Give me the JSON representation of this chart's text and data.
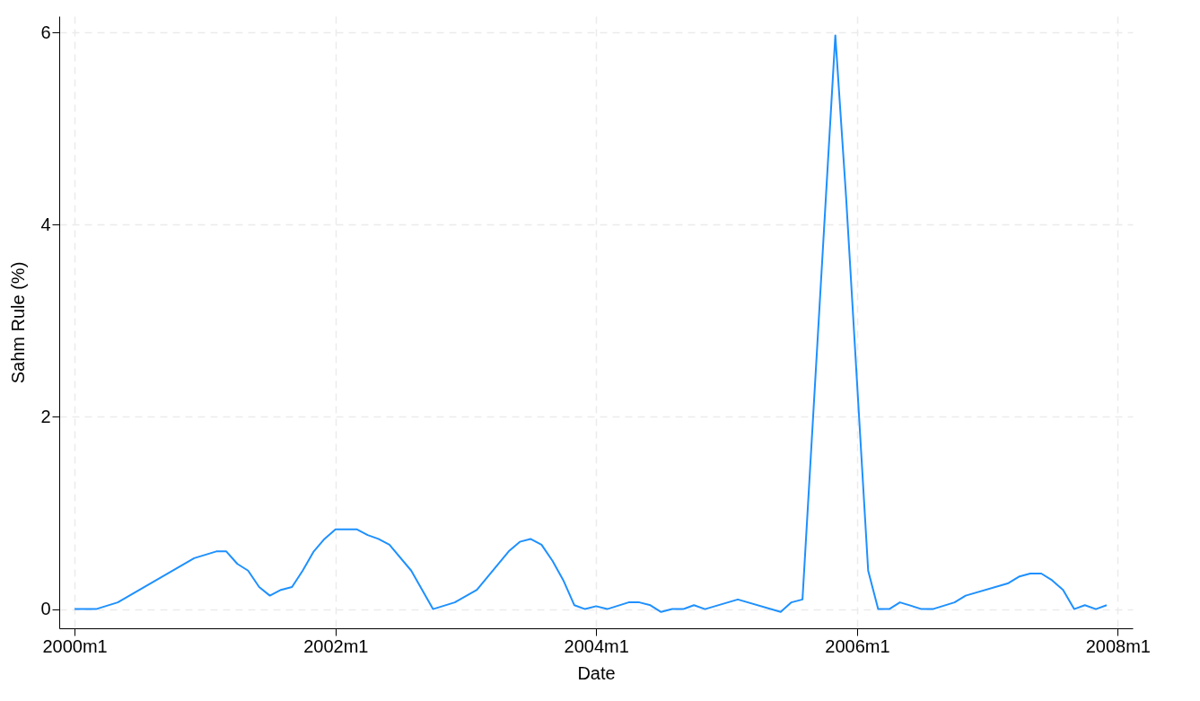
{
  "chart_data": {
    "type": "line",
    "xlabel": "Date",
    "ylabel": "Sahm Rule (%)",
    "x": [
      "2000-01",
      "2000-03",
      "2000-05",
      "2000-12",
      "2001-02",
      "2001-03",
      "2001-04",
      "2001-05",
      "2001-06",
      "2001-07",
      "2001-08",
      "2001-09",
      "2001-10",
      "2001-11",
      "2001-12",
      "2002-01",
      "2002-03",
      "2002-04",
      "2002-05",
      "2002-06",
      "2002-08",
      "2002-10",
      "2002-12",
      "2003-02",
      "2003-05",
      "2003-06",
      "2003-07",
      "2003-08",
      "2003-09",
      "2003-10",
      "2003-11",
      "2003-12",
      "2004-01",
      "2004-02",
      "2004-04",
      "2004-05",
      "2004-06",
      "2004-07",
      "2004-08",
      "2004-09",
      "2004-10",
      "2004-11",
      "2005-02",
      "2005-06",
      "2005-07",
      "2005-08",
      "2005-11",
      "2005-12",
      "2006-02",
      "2006-03",
      "2006-04",
      "2006-05",
      "2006-07",
      "2006-08",
      "2006-10",
      "2006-11",
      "2007-03",
      "2007-04",
      "2007-05",
      "2007-06",
      "2007-07",
      "2007-08",
      "2007-09",
      "2007-10",
      "2007-11",
      "2007-12"
    ],
    "series": [
      {
        "color": "#1e90ff",
        "values": [
          0,
          0,
          0.07,
          0.53,
          0.6,
          0.6,
          0.47,
          0.4,
          0.23,
          0.14,
          0.2,
          0.23,
          0.4,
          0.6,
          0.73,
          0.83,
          0.83,
          0.77,
          0.73,
          0.67,
          0.4,
          0,
          0.07,
          0.2,
          0.6,
          0.7,
          0.73,
          0.67,
          0.5,
          0.3,
          0.04,
          0,
          0.03,
          0,
          0.07,
          0.07,
          0.04,
          -0.03,
          0,
          0,
          0.04,
          0,
          0.1,
          -0.03,
          0.07,
          0.1,
          5.97,
          4.3,
          0.4,
          0,
          0,
          0.07,
          0,
          0,
          0.07,
          0.14,
          0.27,
          0.34,
          0.37,
          0.37,
          0.3,
          0.2,
          0,
          0.04,
          0,
          0.04
        ]
      }
    ],
    "xlim": [
      "1999-11-19",
      "2008-02-12"
    ],
    "ylim": [
      -0.2,
      6.17
    ],
    "xticks": [
      {
        "value": "2000-01",
        "label": "2000m1"
      },
      {
        "value": "2002-01",
        "label": "2002m1"
      },
      {
        "value": "2004-01",
        "label": "2004m1"
      },
      {
        "value": "2006-01",
        "label": "2006m1"
      },
      {
        "value": "2008-01",
        "label": "2008m1"
      }
    ],
    "yticks": [
      0,
      2,
      4,
      6
    ],
    "grid": true,
    "line_style": "solid"
  }
}
